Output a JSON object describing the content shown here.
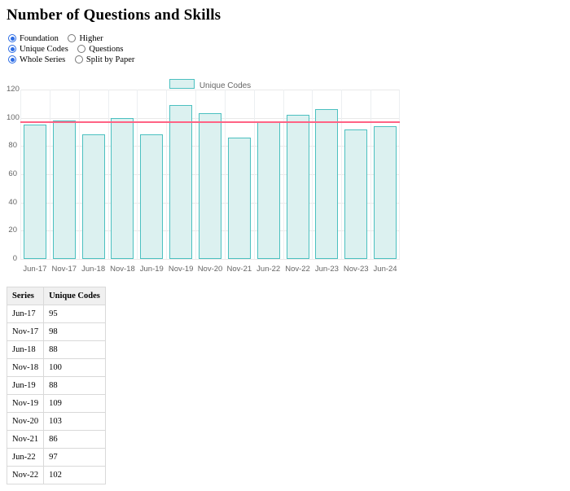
{
  "page": {
    "title": "Number of Questions and Skills"
  },
  "controls": {
    "groups": [
      {
        "options": [
          {
            "label": "Foundation",
            "selected": true
          },
          {
            "label": "Higher",
            "selected": false
          }
        ]
      },
      {
        "options": [
          {
            "label": "Unique Codes",
            "selected": true
          },
          {
            "label": "Questions",
            "selected": false
          }
        ]
      },
      {
        "options": [
          {
            "label": "Whole Series",
            "selected": true
          },
          {
            "label": "Split by Paper",
            "selected": false
          }
        ]
      }
    ]
  },
  "chart_data": {
    "type": "bar",
    "title": "",
    "legend_label": "Unique Codes",
    "legend_position": "top",
    "categories": [
      "Jun-17",
      "Nov-17",
      "Jun-18",
      "Nov-18",
      "Jun-19",
      "Nov-19",
      "Nov-20",
      "Nov-21",
      "Jun-22",
      "Nov-22",
      "Jun-23",
      "Nov-23",
      "Jun-24"
    ],
    "series": [
      {
        "name": "Unique Codes",
        "values": [
          95,
          98,
          88,
          100,
          88,
          109,
          103,
          86,
          97,
          102,
          106,
          92,
          94
        ]
      }
    ],
    "ylim": [
      0,
      120
    ],
    "yticks": [
      0,
      20,
      40,
      60,
      80,
      100,
      120
    ],
    "grid": true,
    "reference_line": {
      "value": 96.8,
      "color": "#ff6384"
    },
    "colors": {
      "bar_fill": "#dcf1f0",
      "bar_border": "#4bc0c0",
      "gridline": "#e9e9e9",
      "tick_text": "#666666"
    }
  },
  "table": {
    "headers": [
      "Series",
      "Unique Codes"
    ],
    "rows": [
      [
        "Jun-17",
        "95"
      ],
      [
        "Nov-17",
        "98"
      ],
      [
        "Jun-18",
        "88"
      ],
      [
        "Nov-18",
        "100"
      ],
      [
        "Jun-19",
        "88"
      ],
      [
        "Nov-19",
        "109"
      ],
      [
        "Nov-20",
        "103"
      ],
      [
        "Nov-21",
        "86"
      ],
      [
        "Jun-22",
        "97"
      ],
      [
        "Nov-22",
        "102"
      ]
    ]
  }
}
